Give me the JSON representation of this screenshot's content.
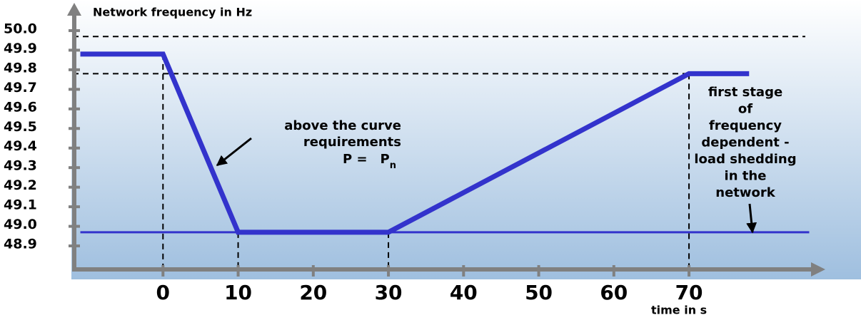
{
  "chart_data": {
    "type": "line",
    "ylabel": "Network frequency in Hz",
    "xlabel": "time in s",
    "xlim": [
      -12,
      87
    ],
    "ylim": [
      48.78,
      50.12
    ],
    "xticks": [
      0,
      10,
      20,
      30,
      40,
      50,
      60,
      70
    ],
    "yticks": [
      {
        "value": 50.0,
        "label": "50.0"
      },
      49.9,
      49.8,
      49.7,
      49.6,
      49.5,
      49.4,
      49.3,
      49.2,
      49.1,
      {
        "value": 49.0,
        "label": "49.0"
      },
      48.9
    ],
    "series": [
      {
        "color": "#3333cc",
        "x": [
          -11,
          0,
          10,
          30,
          70,
          78
        ],
        "values": [
          49.88,
          49.88,
          48.97,
          48.97,
          49.78,
          49.78
        ]
      },
      {
        "color": "#3333cc",
        "x": [
          -11,
          86
        ],
        "values": [
          48.97,
          48.97
        ]
      }
    ],
    "hlines": [
      49.97,
      49.78
    ],
    "vlines": [
      0,
      10,
      30,
      70
    ],
    "annotation_left": [
      "above the curve",
      "requirements"
    ],
    "formula": {
      "lhs": "P =",
      "rhs": "P",
      "sub": "n"
    },
    "annotation_right": [
      "first stage",
      "of",
      "frequency",
      "dependent  -",
      "load shedding",
      "in the",
      "network"
    ]
  }
}
